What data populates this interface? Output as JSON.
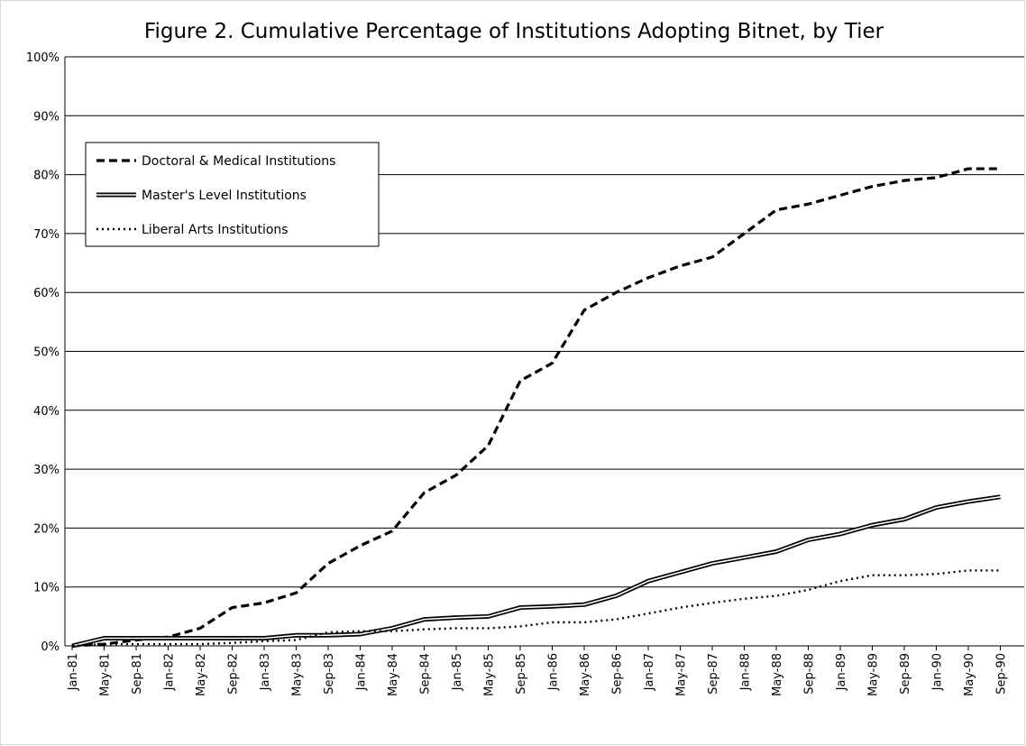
{
  "chart_data": {
    "type": "line",
    "title": "Figure 2. Cumulative Percentage of Institutions Adopting Bitnet,  by Tier",
    "categories": [
      "Jan-81",
      "May-81",
      "Sep-81",
      "Jan-82",
      "May-82",
      "Sep-82",
      "Jan-83",
      "May-83",
      "Sep-83",
      "Jan-84",
      "May-84",
      "Sep-84",
      "Jan-85",
      "May-85",
      "Sep-85",
      "Jan-86",
      "May-86",
      "Sep-86",
      "Jan-87",
      "May-87",
      "Sep-87",
      "Jan-88",
      "May-88",
      "Sep-88",
      "Jan-89",
      "May-89",
      "Sep-89",
      "Jan-90",
      "May-90",
      "Sep-90"
    ],
    "series": [
      {
        "name": "Doctoral & Medical Institutions",
        "color": "#000000",
        "style": "dashed",
        "values": [
          0,
          0.3,
          1,
          1.5,
          3,
          6.5,
          7.3,
          9,
          14,
          17,
          19.5,
          26,
          29,
          34,
          45,
          48,
          57,
          60,
          62.5,
          64.5,
          66,
          70,
          74,
          75,
          76.5,
          78,
          79,
          79.5,
          81,
          81
        ]
      },
      {
        "name": "Master's Level Institutions",
        "color": "#000000",
        "style": "double",
        "values": [
          0,
          1.3,
          1.3,
          1.3,
          1.3,
          1.3,
          1.3,
          1.8,
          1.8,
          2,
          3,
          4.5,
          4.8,
          5,
          6.5,
          6.7,
          7,
          8.5,
          11,
          12.5,
          14,
          15,
          16,
          18,
          19,
          20.5,
          21.5,
          23.5,
          24.5,
          25.3
        ]
      },
      {
        "name": "Liberal Arts Institutions",
        "color": "#000000",
        "style": "dotted",
        "values": [
          0,
          0.3,
          0.3,
          0.3,
          0.3,
          0.5,
          0.8,
          1,
          2.3,
          2.5,
          2.5,
          2.8,
          3,
          3,
          3.3,
          4,
          4,
          4.5,
          5.5,
          6.5,
          7.3,
          8,
          8.5,
          9.5,
          11,
          12,
          12,
          12.2,
          12.8,
          12.8
        ]
      }
    ],
    "ylim": [
      0,
      100
    ],
    "yticks": [
      {
        "value": 0,
        "label": "0%"
      },
      {
        "value": 10,
        "label": "10%"
      },
      {
        "value": 20,
        "label": "20%"
      },
      {
        "value": 30,
        "label": "30%"
      },
      {
        "value": 40,
        "label": "40%"
      },
      {
        "value": 50,
        "label": "50%"
      },
      {
        "value": 60,
        "label": "60%"
      },
      {
        "value": 70,
        "label": "70%"
      },
      {
        "value": 80,
        "label": "80%"
      },
      {
        "value": 90,
        "label": "90%"
      },
      {
        "value": 100,
        "label": "100%"
      }
    ],
    "grid": true,
    "legend": "upper-left"
  }
}
